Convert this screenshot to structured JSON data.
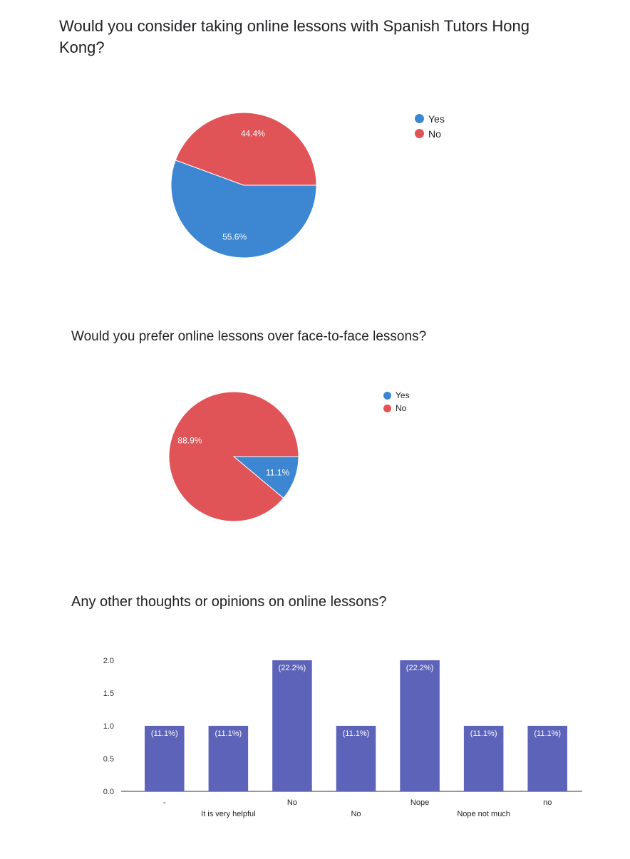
{
  "questions": [
    {
      "title": "Would you consider taking online lessons with Spanish Tutors Hong Kong?",
      "legend": [
        {
          "label": "Yes",
          "color": "#3d87d2"
        },
        {
          "label": "No",
          "color": "#e05357"
        }
      ]
    },
    {
      "title": "Would you prefer online lessons over face-to-face lessons?",
      "legend": [
        {
          "label": "Yes",
          "color": "#3d87d2"
        },
        {
          "label": "No",
          "color": "#e05357"
        }
      ]
    },
    {
      "title": "Any other thoughts or opinions on online lessons?"
    }
  ],
  "chart_data": [
    {
      "type": "pie",
      "title": "Would you consider taking online lessons with Spanish Tutors Hong Kong?",
      "legend_position": "right",
      "slices": [
        {
          "label": "Yes",
          "value": 55.6,
          "display": "55.6%",
          "color": "#3d87d2"
        },
        {
          "label": "No",
          "value": 44.4,
          "display": "44.4%",
          "color": "#e05357"
        }
      ]
    },
    {
      "type": "pie",
      "title": "Would you prefer online lessons over face-to-face lessons?",
      "legend_position": "right",
      "slices": [
        {
          "label": "Yes",
          "value": 11.1,
          "display": "11.1%",
          "color": "#3d87d2"
        },
        {
          "label": "No",
          "value": 88.9,
          "display": "88.9%",
          "color": "#e05357"
        }
      ]
    },
    {
      "type": "bar",
      "title": "Any other thoughts or opinions on online lessons?",
      "categories": [
        "-",
        "It is very helpful",
        "No",
        "No",
        "Nope",
        "Nope not much",
        "no"
      ],
      "values": [
        1,
        1,
        2,
        1,
        2,
        1,
        1
      ],
      "value_labels": [
        "(11.1%)",
        "(11.1%)",
        "(22.2%)",
        "(11.1%)",
        "(22.2%)",
        "(11.1%)",
        "(11.1%)"
      ],
      "ylim": [
        0,
        2
      ],
      "yticks": [
        "0.0",
        "0.5",
        "1.0",
        "1.5",
        "2.0"
      ],
      "bar_color": "#5d63b8",
      "grid": false
    }
  ]
}
